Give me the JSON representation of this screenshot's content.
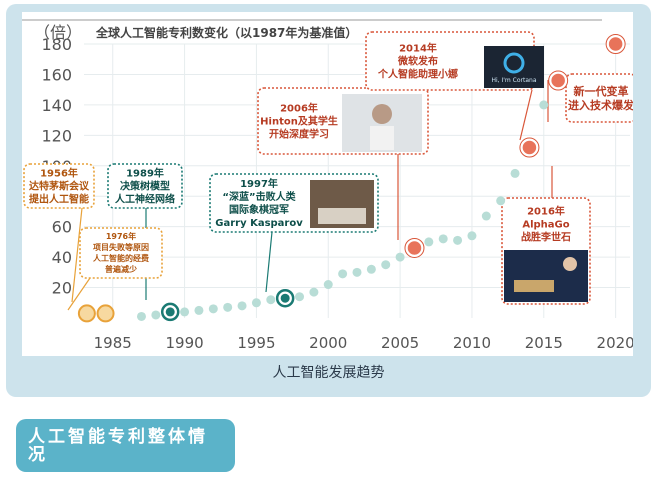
{
  "chart_data": {
    "type": "scatter",
    "title": "全球人工智能专利数变化（以1987年为基准值）",
    "ylabel_unit": "（倍）",
    "xlim": [
      1983,
      2021
    ],
    "ylim": [
      0,
      180
    ],
    "x_ticks": [
      "1985",
      "1990",
      "1995",
      "2000",
      "2005",
      "2010",
      "2015",
      "2020"
    ],
    "y_ticks": [
      "20",
      "40",
      "60",
      "80",
      "100",
      "120",
      "140",
      "160",
      "180"
    ],
    "grid": true,
    "points": [
      {
        "x": 1987,
        "y": 1
      },
      {
        "x": 1988,
        "y": 2
      },
      {
        "x": 1990,
        "y": 4
      },
      {
        "x": 1991,
        "y": 5
      },
      {
        "x": 1992,
        "y": 6
      },
      {
        "x": 1993,
        "y": 7
      },
      {
        "x": 1994,
        "y": 8
      },
      {
        "x": 1995,
        "y": 10
      },
      {
        "x": 1996,
        "y": 12
      },
      {
        "x": 1998,
        "y": 14
      },
      {
        "x": 1999,
        "y": 17
      },
      {
        "x": 2000,
        "y": 22
      },
      {
        "x": 2001,
        "y": 29
      },
      {
        "x": 2002,
        "y": 30
      },
      {
        "x": 2003,
        "y": 32
      },
      {
        "x": 2004,
        "y": 35
      },
      {
        "x": 2005,
        "y": 40
      },
      {
        "x": 2007,
        "y": 50
      },
      {
        "x": 2008,
        "y": 52
      },
      {
        "x": 2009,
        "y": 51
      },
      {
        "x": 2010,
        "y": 54
      },
      {
        "x": 2011,
        "y": 67
      },
      {
        "x": 2012,
        "y": 77
      },
      {
        "x": 2013,
        "y": 95
      },
      {
        "x": 2015,
        "y": 140
      }
    ],
    "highlight_points": [
      {
        "x": 1983.2,
        "y": 3,
        "style": "orange"
      },
      {
        "x": 1984.5,
        "y": 3,
        "style": "orange"
      },
      {
        "x": 1989,
        "y": 4,
        "style": "teal"
      },
      {
        "x": 1997,
        "y": 13,
        "style": "teal"
      },
      {
        "x": 2006,
        "y": 46,
        "style": "red"
      },
      {
        "x": 2014,
        "y": 112,
        "style": "red"
      },
      {
        "x": 2016,
        "y": 156,
        "style": "red"
      },
      {
        "x": 2020,
        "y": 180,
        "style": "red"
      }
    ],
    "annotations": [
      {
        "lines": [
          "1956年",
          "达特茅斯会议",
          "提出人工智能"
        ],
        "style": "orange"
      },
      {
        "lines": [
          "1976年",
          "项目失败等原因",
          "人工智能的经费",
          "普遍减少"
        ],
        "style": "orange"
      },
      {
        "lines": [
          "1989年",
          "决策树模型",
          "人工神经网络"
        ],
        "style": "teal"
      },
      {
        "lines": [
          "1997年",
          "“深蓝”击败人类",
          "国际象棋冠军",
          "Garry Kasparov"
        ],
        "style": "teal"
      },
      {
        "lines": [
          "2006年",
          "Hinton及其学生",
          "开始深度学习"
        ],
        "style": "red"
      },
      {
        "lines": [
          "2014年",
          "微软发布",
          "个人智能助理小娜"
        ],
        "style": "red"
      },
      {
        "lines": [
          "新一代变革",
          "进入技术爆发"
        ],
        "style": "red"
      },
      {
        "lines": [
          "2016年",
          "AlphaGo",
          "战胜李世石"
        ],
        "style": "red"
      }
    ],
    "image_text": {
      "cortana": "Hi, I'm Cortana"
    },
    "colors": {
      "gray_point": "#b8ddd6",
      "orange": "#e8a23a",
      "orange_fill": "#f7d9a0",
      "teal": "#1a7a73",
      "red": "#d9573a",
      "red_fill": "#e8735a",
      "grid": "#e6ecee",
      "axis_text": "#555555",
      "title": "#444444"
    }
  },
  "caption": "人工智能发展趋势",
  "section_heading": "人工智能专利整体情况"
}
